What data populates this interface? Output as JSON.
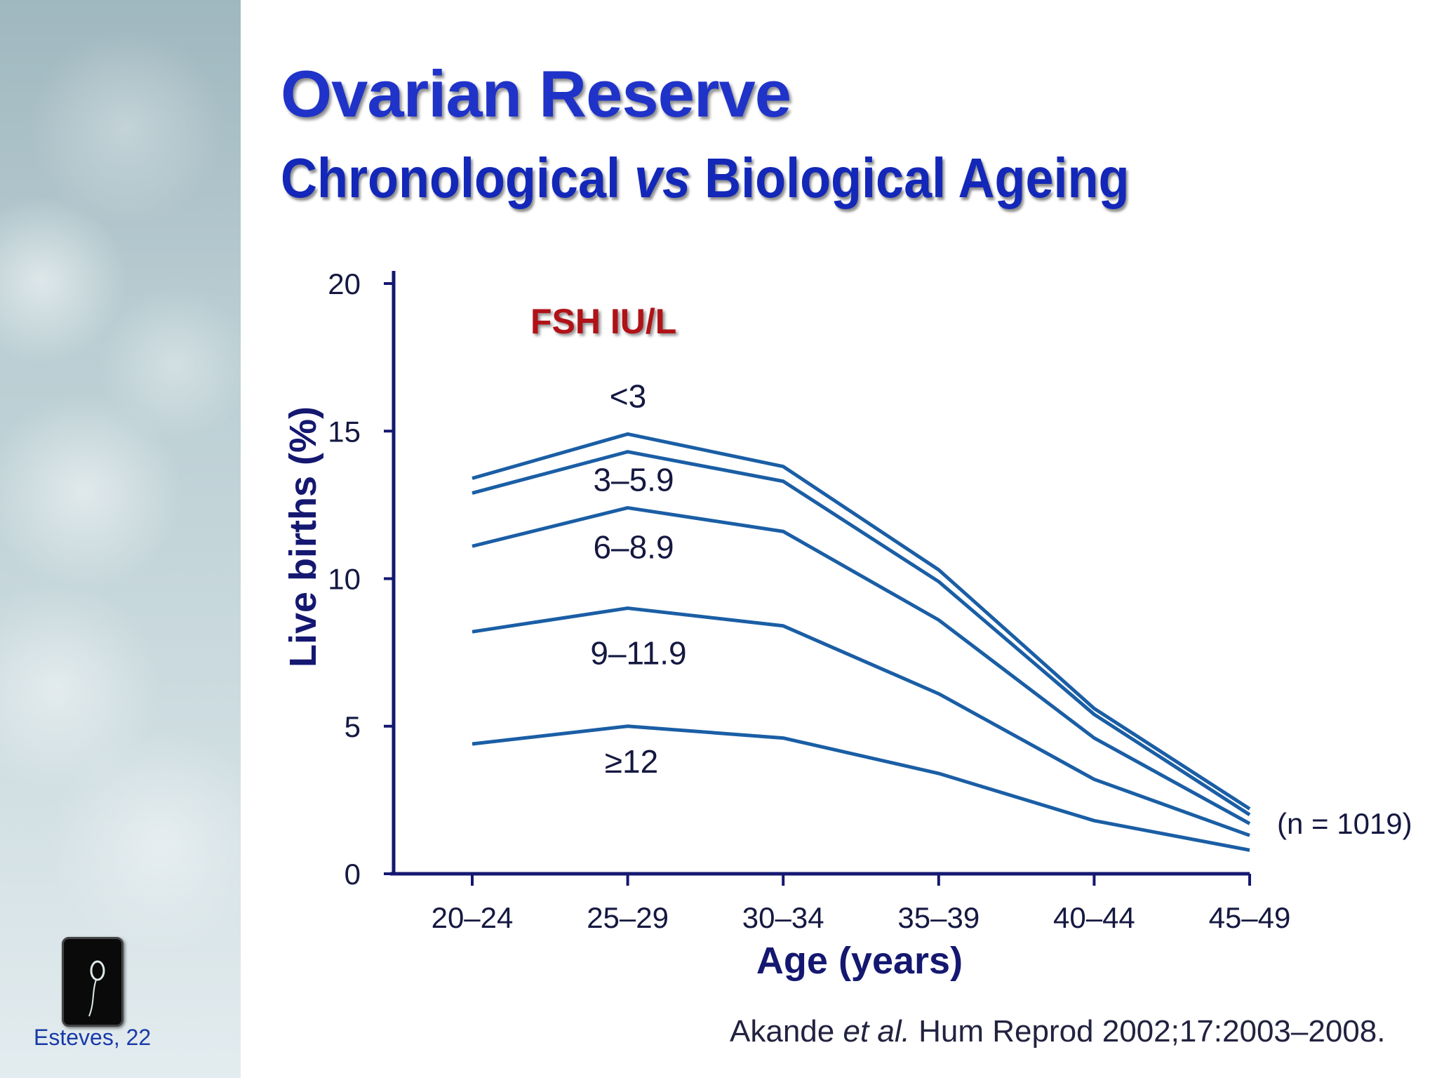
{
  "header": {
    "title": "Ovarian Reserve",
    "subtitle_a": "Chronological ",
    "subtitle_b": "vs",
    "subtitle_c": " Biological Ageing"
  },
  "sidebar": {
    "author": "Esteves, 22"
  },
  "citation": {
    "author": "Akande ",
    "etal": "et al.",
    "rest": " Hum Reprod 2002;17:2003–2008."
  },
  "chart_data": {
    "type": "line",
    "xlabel": "Age (years)",
    "ylabel": "Live births (%)",
    "categories": [
      "20–24",
      "25–29",
      "30–34",
      "35–39",
      "40–44",
      "45–49"
    ],
    "ylim": [
      0,
      20
    ],
    "yticks": [
      "0",
      "5",
      "10",
      "15",
      "20"
    ],
    "legend_title": "FSH IU/L",
    "annotation": "(n = 1019)",
    "grid": false,
    "line_color": "#1a5ea5",
    "series": [
      {
        "name": "<3",
        "values": [
          13.4,
          14.9,
          13.8,
          10.3,
          5.6,
          2.2
        ]
      },
      {
        "name": "3–5.9",
        "values": [
          12.9,
          14.3,
          13.3,
          9.9,
          5.4,
          2.0
        ]
      },
      {
        "name": "6–8.9",
        "values": [
          11.1,
          12.4,
          11.6,
          8.6,
          4.6,
          1.7
        ]
      },
      {
        "name": "9–11.9",
        "values": [
          8.2,
          9.0,
          8.4,
          6.1,
          3.2,
          1.3
        ]
      },
      {
        "name": "≥12",
        "values": [
          4.4,
          5.0,
          4.6,
          3.4,
          1.8,
          0.8
        ]
      }
    ]
  }
}
